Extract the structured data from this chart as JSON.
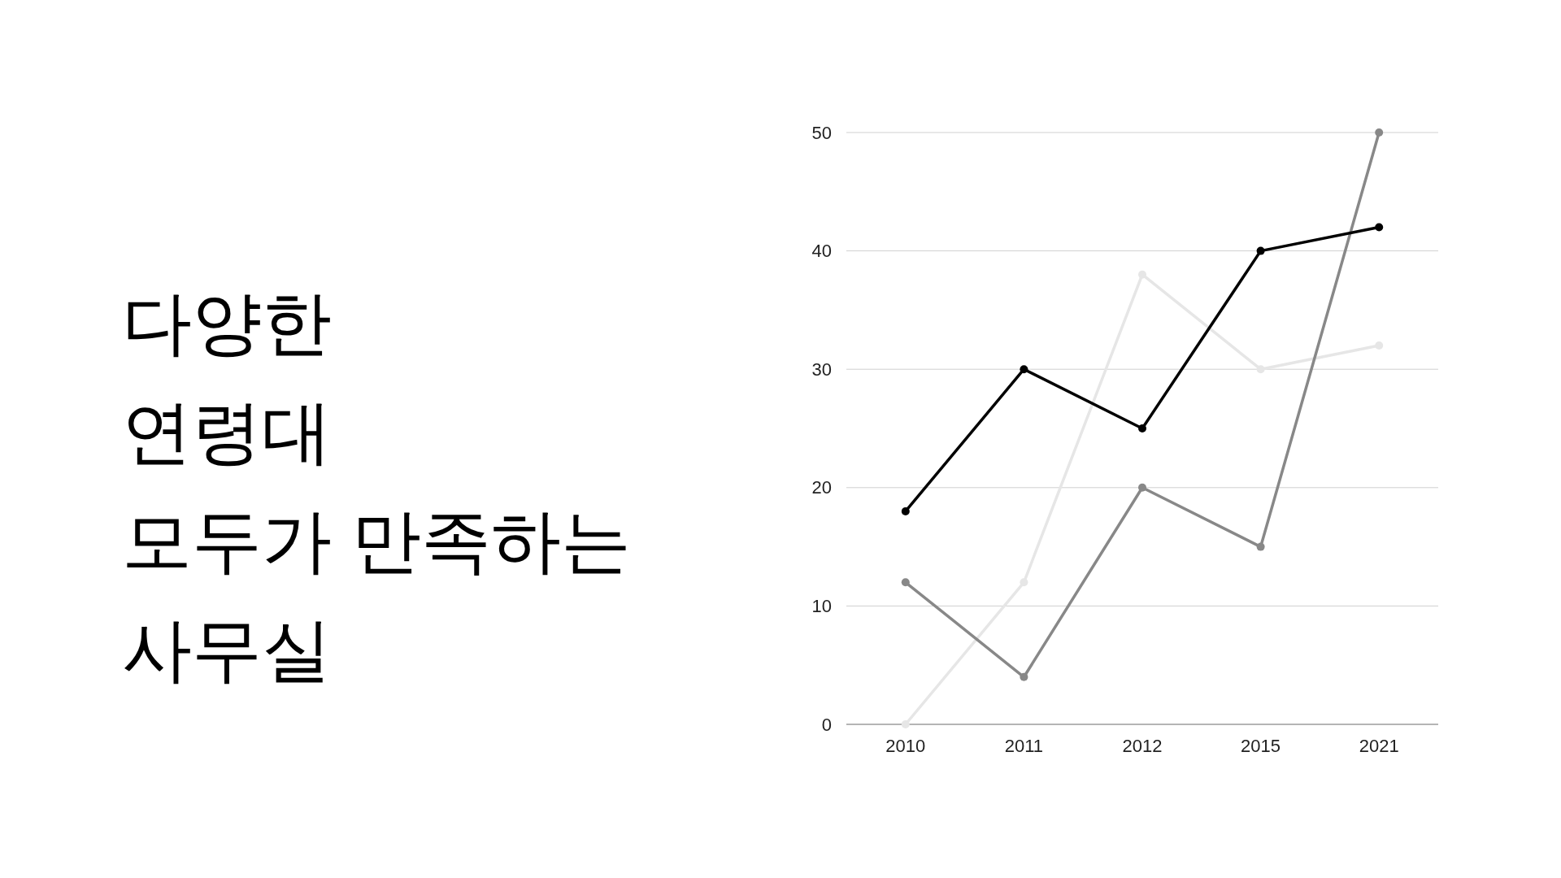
{
  "chart_data": {
    "type": "line",
    "title": "다양한\n연령대\n모두가 만족하는\n사무실",
    "categories": [
      "2010",
      "2011",
      "2012",
      "2015",
      "2021"
    ],
    "series": [
      {
        "color": "#e6e6e6",
        "values": [
          0,
          12,
          38,
          30,
          32
        ]
      },
      {
        "color": "#888888",
        "values": [
          12,
          4,
          20,
          15,
          50
        ]
      },
      {
        "color": "#000000",
        "values": [
          18,
          30,
          25,
          40,
          42
        ]
      }
    ],
    "ylim": [
      0,
      50
    ],
    "yticks": [
      0,
      10,
      20,
      30,
      40,
      50
    ],
    "grid": "y",
    "marker": "circle",
    "line_style": "solid"
  }
}
